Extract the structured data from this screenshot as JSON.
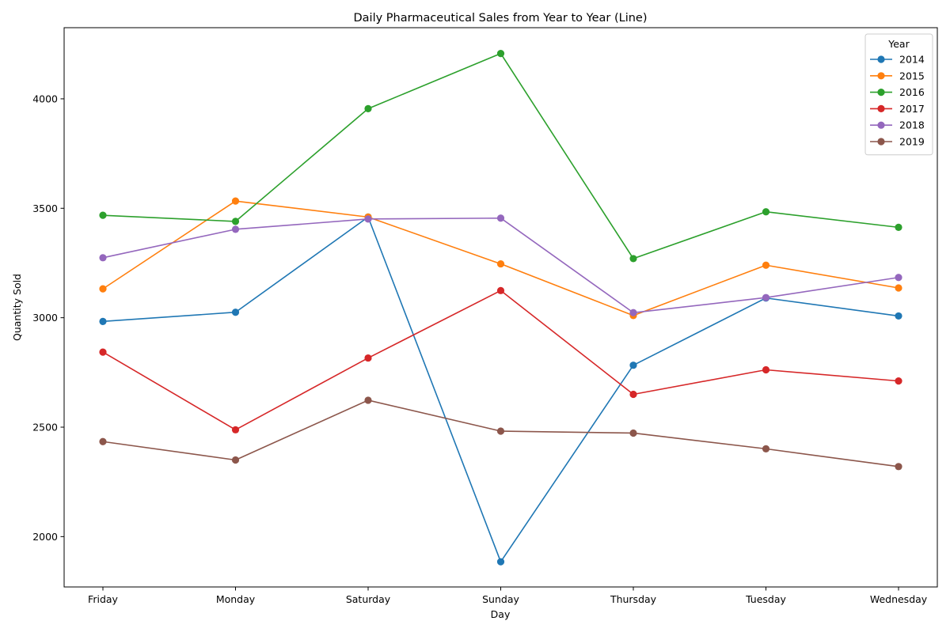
{
  "chart_data": {
    "type": "line",
    "title": "Daily Pharmaceutical Sales from Year to Year (Line)",
    "xlabel": "Day",
    "ylabel": "Quantity Sold",
    "categories": [
      "Friday",
      "Monday",
      "Saturday",
      "Sunday",
      "Thursday",
      "Tuesday",
      "Wednesday"
    ],
    "ylim": [
      1770,
      4325
    ],
    "yticks": [
      2000,
      2500,
      3000,
      3500,
      4000
    ],
    "grid": false,
    "legend": {
      "title": "Year",
      "placement": "top-right"
    },
    "series": [
      {
        "name": "2014",
        "color": "#1f77b4",
        "values": [
          2983,
          3025,
          3460,
          1885,
          2783,
          3090,
          3008
        ]
      },
      {
        "name": "2015",
        "color": "#ff7f0e",
        "values": [
          3132,
          3533,
          3460,
          3246,
          3010,
          3240,
          3136
        ]
      },
      {
        "name": "2016",
        "color": "#2ca02c",
        "values": [
          3468,
          3440,
          3955,
          4207,
          3270,
          3484,
          3413
        ]
      },
      {
        "name": "2017",
        "color": "#d62728",
        "values": [
          2843,
          2488,
          2816,
          3124,
          2650,
          2762,
          2711
        ]
      },
      {
        "name": "2018",
        "color": "#9467bd",
        "values": [
          3274,
          3404,
          3451,
          3455,
          3023,
          3092,
          3184
        ]
      },
      {
        "name": "2019",
        "color": "#8c564b",
        "values": [
          2434,
          2350,
          2623,
          2482,
          2473,
          2401,
          2320
        ]
      }
    ]
  }
}
